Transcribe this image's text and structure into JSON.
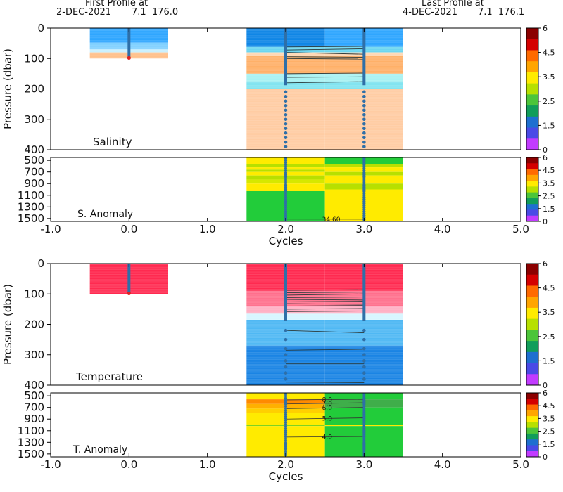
{
  "header": {
    "first_line1": "First Profile at",
    "first_line2": "2-DEC-2021       7.1  176.0",
    "last_line1": "Last Profile at",
    "last_line2": "4-DEC-2021       7.1  176.1"
  },
  "chart_data": [
    {
      "type": "heatmap",
      "name": "salinity-panel",
      "panel_label": "Salinity",
      "ylabel": "Pressure (dbar)",
      "xlim": [
        -1.0,
        5.0
      ],
      "ylim": [
        400,
        0
      ],
      "yticks": [
        0,
        100,
        200,
        300,
        400
      ],
      "cycles": [
        0,
        2,
        3
      ],
      "colorbar_ticks": [
        "6",
        "4.5",
        "3.5",
        "2.5",
        "1.5",
        "0"
      ],
      "anomaly": {
        "label": "S. Anomaly",
        "yticks": [
          500,
          700,
          900,
          1100,
          1300,
          1500
        ],
        "contour_labels": [
          "34.60"
        ]
      }
    },
    {
      "type": "heatmap",
      "name": "temperature-panel",
      "panel_label": "Temperature",
      "ylabel": "Pressure (dbar)",
      "xlabel": "Cycles",
      "xlim": [
        -1.0,
        5.0
      ],
      "ylim": [
        400,
        0
      ],
      "yticks": [
        0,
        100,
        200,
        300,
        400
      ],
      "cycles": [
        0,
        2,
        3
      ],
      "colorbar_ticks": [
        "6",
        "4.5",
        "3.5",
        "2.5",
        "1.5",
        "0"
      ],
      "anomaly": {
        "label": "T. Anomaly",
        "yticks": [
          500,
          700,
          900,
          1100,
          1300,
          1500
        ],
        "contour_labels": [
          "8.0",
          "7.0",
          "6.0",
          "5.0",
          "4.0"
        ]
      }
    }
  ],
  "x_axis": {
    "ticks": [
      "-1.0",
      "0.0",
      "1.0",
      "2.0",
      "3.0",
      "4.0",
      "5.0"
    ],
    "label": "Cycles"
  },
  "colorbar": {
    "colors": [
      "#8b0000",
      "#d40000",
      "#ff6a00",
      "#ffa500",
      "#ffeb00",
      "#b7e000",
      "#4cc53a",
      "#119d5a",
      "#1e6fd0",
      "#4a4ae6",
      "#c23bff"
    ]
  }
}
